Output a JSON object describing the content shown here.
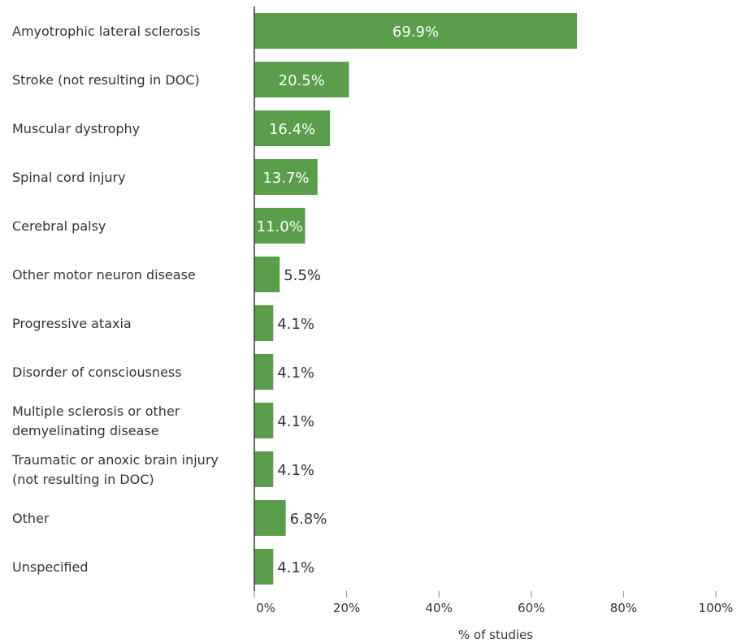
{
  "chart_data": {
    "type": "bar",
    "orientation": "horizontal",
    "categories": [
      "Amyotrophic lateral sclerosis",
      "Stroke (not resulting in DOC)",
      "Muscular dystrophy",
      "Spinal cord injury",
      "Cerebral palsy",
      "Other motor neuron disease",
      "Progressive ataxia",
      "Disorder of consciousness",
      "Multiple sclerosis or other demyelinating disease",
      "Traumatic or anoxic brain injury (not resulting in DOC)",
      "Other",
      "Unspecified"
    ],
    "category_lines": [
      [
        "Amyotrophic lateral sclerosis"
      ],
      [
        "Stroke (not resulting in DOC)"
      ],
      [
        "Muscular dystrophy"
      ],
      [
        "Spinal cord injury"
      ],
      [
        "Cerebral palsy"
      ],
      [
        "Other motor neuron disease"
      ],
      [
        "Progressive ataxia"
      ],
      [
        "Disorder of consciousness"
      ],
      [
        "Multiple sclerosis or other",
        "demyelinating disease"
      ],
      [
        "Traumatic or anoxic brain injury",
        "(not resulting in DOC)"
      ],
      [
        "Other"
      ],
      [
        "Unspecified"
      ]
    ],
    "values": [
      69.9,
      20.5,
      16.4,
      13.7,
      11.0,
      5.5,
      4.1,
      4.1,
      4.1,
      4.1,
      6.8,
      4.1
    ],
    "value_labels": [
      "69.9%",
      "20.5%",
      "16.4%",
      "13.7%",
      "11.0%",
      "5.5%",
      "4.1%",
      "4.1%",
      "4.1%",
      "4.1%",
      "6.8%",
      "4.1%"
    ],
    "xlabel": "% of studies",
    "xlim": [
      0,
      100
    ],
    "xticks": [
      0,
      20,
      40,
      60,
      80,
      100
    ],
    "xtick_labels": [
      "0%",
      "20%",
      "40%",
      "60%",
      "80%",
      "100%"
    ],
    "grid": false,
    "bar_color": "#5a9e4b"
  }
}
